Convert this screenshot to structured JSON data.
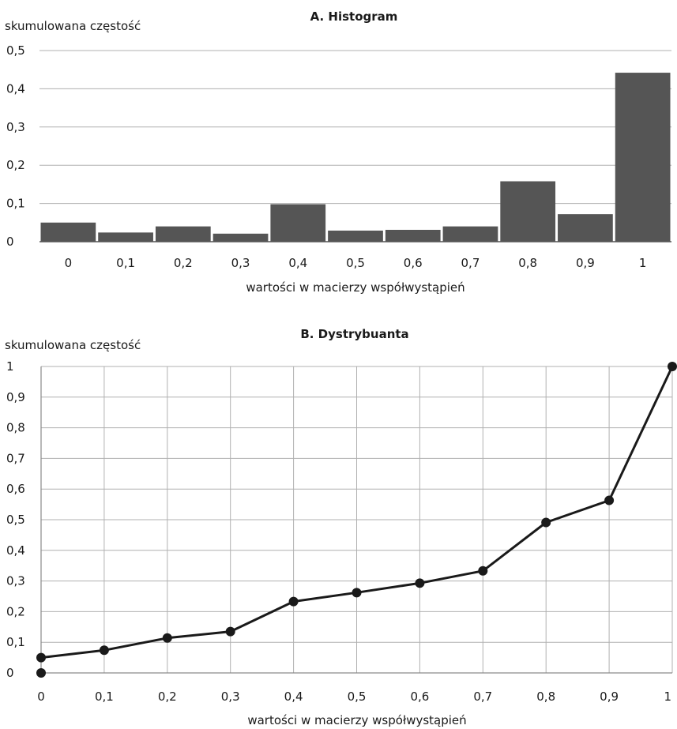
{
  "chart_data": [
    {
      "type": "bar",
      "title": "A. Histogram",
      "ylabel": "skumulowana częstość",
      "xlabel": "wartości w macierzy współwystąpień",
      "categories": [
        "0",
        "0,1",
        "0,2",
        "0,3",
        "0,4",
        "0,5",
        "0,6",
        "0,7",
        "0,8",
        "0,9",
        "1"
      ],
      "values": [
        0.05,
        0.024,
        0.04,
        0.021,
        0.098,
        0.029,
        0.031,
        0.04,
        0.158,
        0.072,
        0.442
      ],
      "ylim": [
        0,
        0.5
      ],
      "yticks": [
        "0",
        "0,1",
        "0,2",
        "0,3",
        "0,4",
        "0,5"
      ],
      "ytick_values": [
        0,
        0.1,
        0.2,
        0.3,
        0.4,
        0.5
      ],
      "grid": "horizontal",
      "bar_color": "#555555"
    },
    {
      "type": "line",
      "title": "B. Dystrybuanta",
      "ylabel": "skumulowana częstość",
      "xlabel": "wartości w macierzy współwystąpień",
      "x": [
        0,
        0.1,
        0.2,
        0.3,
        0.4,
        0.5,
        0.6,
        0.7,
        0.8,
        0.9,
        1
      ],
      "y": [
        0.05,
        0.074,
        0.114,
        0.135,
        0.233,
        0.262,
        0.293,
        0.333,
        0.491,
        0.563,
        1.0
      ],
      "extra_points": [
        {
          "x": 0,
          "y": 0
        }
      ],
      "xticks": [
        "0",
        "0,1",
        "0,2",
        "0,3",
        "0,4",
        "0,5",
        "0,6",
        "0,7",
        "0,8",
        "0,9",
        "1"
      ],
      "yticks": [
        "0",
        "0,1",
        "0,2",
        "0,3",
        "0,4",
        "0,5",
        "0,6",
        "0,7",
        "0,8",
        "0,9",
        "1"
      ],
      "xlim": [
        0,
        1
      ],
      "ylim": [
        0,
        1
      ],
      "grid": "both",
      "line_color": "#1a1a1a"
    }
  ]
}
